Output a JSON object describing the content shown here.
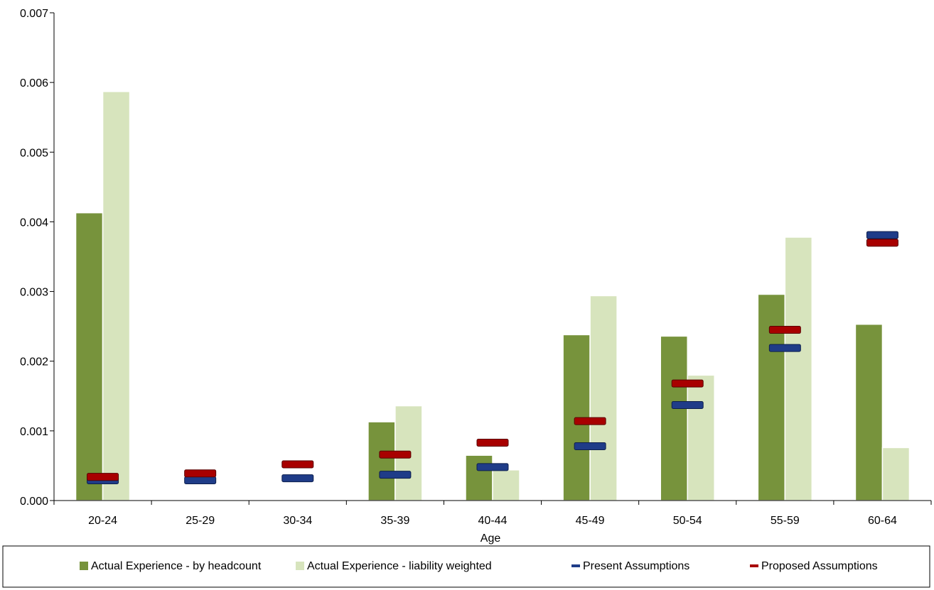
{
  "chart_data": {
    "type": "bar",
    "title": "",
    "xlabel": "Age",
    "ylabel": "",
    "categories": [
      "20-24",
      "25-29",
      "30-34",
      "35-39",
      "40-44",
      "45-49",
      "50-54",
      "55-59",
      "60-64"
    ],
    "ylim": [
      0,
      0.007
    ],
    "yticks": [
      "0.000",
      "0.001",
      "0.002",
      "0.003",
      "0.004",
      "0.005",
      "0.006",
      "0.007"
    ],
    "ytick_values": [
      0,
      0.001,
      0.002,
      0.003,
      0.004,
      0.005,
      0.006,
      0.007
    ],
    "grid": false,
    "legend_position": "bottom",
    "series": [
      {
        "name": "Actual Experience - by headcount",
        "kind": "bar",
        "color": "#77933c",
        "values": [
          0.00413,
          0,
          0,
          0.00113,
          0.00065,
          0.00238,
          0.00236,
          0.00296,
          0.00253
        ]
      },
      {
        "name": "Actual Experience - liability weighted",
        "kind": "bar",
        "color": "#d7e4bd",
        "values": [
          0.00587,
          0,
          0,
          0.00136,
          0.00044,
          0.00294,
          0.0018,
          0.00378,
          0.00076
        ]
      },
      {
        "name": "Present Assumptions",
        "kind": "marker",
        "color": "#1f3c88",
        "values": [
          0.00029,
          0.00029,
          0.00032,
          0.00037,
          0.00048,
          0.00078,
          0.00137,
          0.00219,
          0.00381
        ]
      },
      {
        "name": "Proposed Assumptions",
        "kind": "marker",
        "color": "#a80000",
        "values": [
          0.00034,
          0.00039,
          0.00052,
          0.00066,
          0.00083,
          0.00114,
          0.00168,
          0.00245,
          0.0037
        ]
      }
    ]
  }
}
